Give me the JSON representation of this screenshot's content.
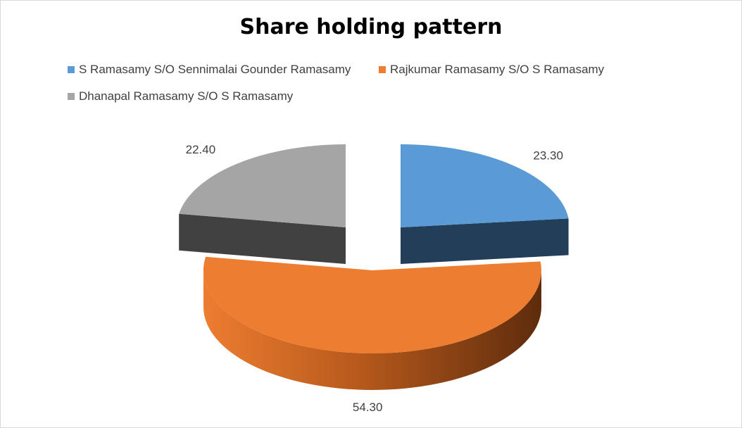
{
  "chart_data": {
    "type": "pie",
    "title": "Share holding pattern",
    "categories": [
      "S Ramasamy S/O Sennimalai Gounder Ramasamy",
      "Rajkumar Ramasamy S/O S Ramasamy",
      "Dhanapal Ramasamy S/O S Ramasamy"
    ],
    "values": [
      23.3,
      54.3,
      22.4
    ],
    "data_labels": [
      "23.30",
      "54.30",
      "22.40"
    ],
    "colors": [
      "#5B9BD5",
      "#ED7D31",
      "#A5A5A5"
    ],
    "legend_position": "top",
    "style": "3d-exploded"
  }
}
